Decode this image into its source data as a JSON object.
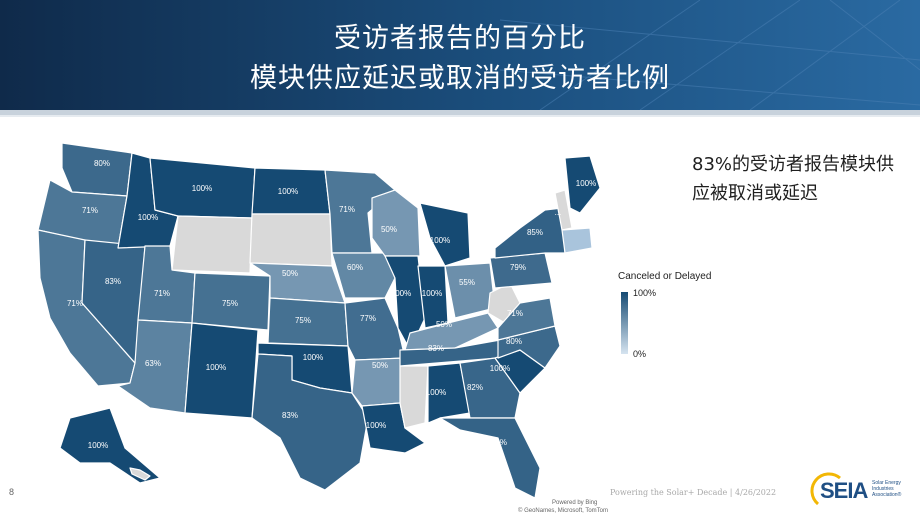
{
  "slide": {
    "title_line1": "受访者报告的百分比",
    "title_line2": "模块供应延迟或取消的受访者比例",
    "summary": "83%的受访者报告模块供应被取消或延迟",
    "page_number": "8",
    "footer": "Powering the Solar+ Decade | 4/26/2022",
    "map_credit_line1": "Powered by Bing",
    "map_credit_line2": "© GeoNames, Microsoft, TomTom",
    "logo_text": "SEIA",
    "logo_subtext": "Solar Energy Industries Association®"
  },
  "legend": {
    "title": "Canceled or Delayed",
    "max_label": "100%",
    "min_label": "0%",
    "color_max": "#154a73",
    "color_min": "#d6e4f0",
    "color_no_data": "#d9d9d9"
  },
  "states": [
    {
      "id": "WA",
      "value": 80,
      "label": "80%"
    },
    {
      "id": "OR",
      "value": 71,
      "label": "71%"
    },
    {
      "id": "CA",
      "value": 71,
      "label": "71%"
    },
    {
      "id": "NV",
      "value": 83,
      "label": "83%"
    },
    {
      "id": "ID",
      "value": 100,
      "label": "100%"
    },
    {
      "id": "MT",
      "value": 100,
      "label": "100%"
    },
    {
      "id": "WY",
      "value": null,
      "label": ""
    },
    {
      "id": "UT",
      "value": 71,
      "label": "71%"
    },
    {
      "id": "AZ",
      "value": 63,
      "label": "63%"
    },
    {
      "id": "CO",
      "value": 75,
      "label": "75%"
    },
    {
      "id": "NM",
      "value": 100,
      "label": "100%"
    },
    {
      "id": "ND",
      "value": 100,
      "label": "100%"
    },
    {
      "id": "SD",
      "value": null,
      "label": ""
    },
    {
      "id": "NE",
      "value": 50,
      "label": "50%"
    },
    {
      "id": "KS",
      "value": 75,
      "label": "75%"
    },
    {
      "id": "OK",
      "value": 100,
      "label": "100%"
    },
    {
      "id": "TX",
      "value": 83,
      "label": "83%"
    },
    {
      "id": "MN",
      "value": 71,
      "label": "71%"
    },
    {
      "id": "IA",
      "value": 60,
      "label": "60%"
    },
    {
      "id": "MO",
      "value": 77,
      "label": "77%"
    },
    {
      "id": "AR",
      "value": 50,
      "label": "50%"
    },
    {
      "id": "LA",
      "value": 100,
      "label": "100%"
    },
    {
      "id": "WI",
      "value": 50,
      "label": "50%"
    },
    {
      "id": "IL",
      "value": 100,
      "label": "100%"
    },
    {
      "id": "MS",
      "value": null,
      "label": ""
    },
    {
      "id": "MI",
      "value": 100,
      "label": "100%"
    },
    {
      "id": "IN",
      "value": 100,
      "label": "100%"
    },
    {
      "id": "KY",
      "value": 50,
      "label": "50%"
    },
    {
      "id": "TN",
      "value": 83,
      "label": "83%"
    },
    {
      "id": "AL",
      "value": 100,
      "label": "100%"
    },
    {
      "id": "OH",
      "value": 55,
      "label": "55%"
    },
    {
      "id": "WV",
      "value": null,
      "label": ""
    },
    {
      "id": "GA",
      "value": 82,
      "label": "82%"
    },
    {
      "id": "FL",
      "value": 84,
      "label": "84%"
    },
    {
      "id": "SC",
      "value": 100,
      "label": "100%"
    },
    {
      "id": "NC",
      "value": 80,
      "label": "80%"
    },
    {
      "id": "VA",
      "value": 71,
      "label": "71%"
    },
    {
      "id": "PA",
      "value": 79,
      "label": "79%"
    },
    {
      "id": "NY",
      "value": 85,
      "label": "85%"
    },
    {
      "id": "VT",
      "value": null,
      "label": "..."
    },
    {
      "id": "ME",
      "value": 100,
      "label": "100%"
    },
    {
      "id": "AK",
      "value": 100,
      "label": "100%"
    },
    {
      "id": "HI",
      "value": null,
      "label": ""
    }
  ]
}
